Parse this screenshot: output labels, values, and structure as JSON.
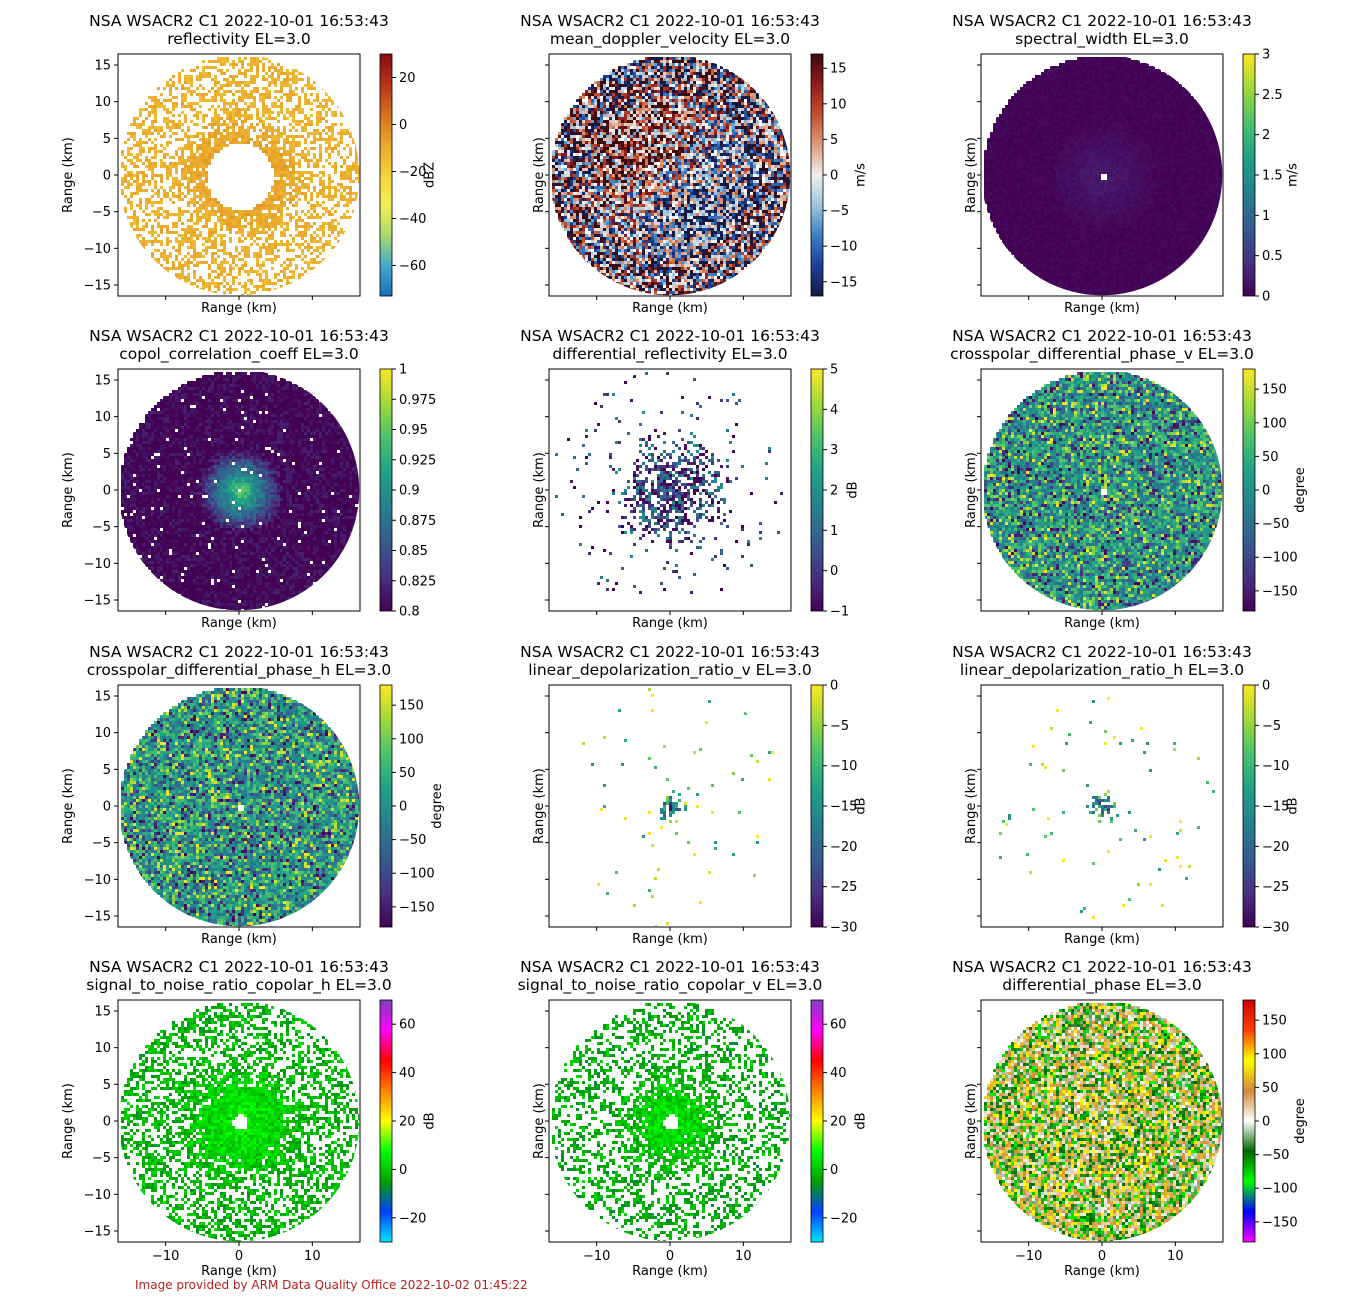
{
  "footer": {
    "credit": "Image provided by ARM Data Quality Office 2022-10-02 01:45:22"
  },
  "common": {
    "title_line1": "NSA WSACR2 C1 2022-10-01 16:53:43",
    "elevation": "EL=3.0",
    "xlabel": "Range (km)",
    "ylabel": "Range (km)",
    "xlim": [
      -16.5,
      16.5
    ],
    "ylim": [
      -16.5,
      16.5
    ],
    "xticks": [
      -10,
      0,
      10
    ],
    "yticks": [
      -15,
      -10,
      -5,
      0,
      5,
      10,
      15
    ]
  },
  "chart_data": [
    {
      "type": "heatmap",
      "field": "reflectivity",
      "units": "dBZ",
      "vmin": -73,
      "vmax": 30,
      "cbar_ticks": [
        -60,
        -40,
        -20,
        0,
        20
      ],
      "cmap": [
        "#1a6fb8",
        "#44aacc",
        "#a7d96a",
        "#f3ef55",
        "#f5d23a",
        "#e9a92c",
        "#d6701e",
        "#b8321b",
        "#8a0b12"
      ],
      "pattern": {
        "density": 0.5,
        "clear": 4.5,
        "core_radius": 9,
        "bg_value": 0.6,
        "core_value": 0.67,
        "spread": 0.04,
        "radial": false
      }
    },
    {
      "type": "heatmap",
      "field": "mean_doppler_velocity",
      "units": "m/s",
      "vmin": -17,
      "vmax": 17,
      "cbar_ticks": [
        -15,
        -10,
        -5,
        0,
        5,
        10,
        15
      ],
      "cmap": [
        "#141a45",
        "#1d3f99",
        "#3a7fbf",
        "#9ec6dd",
        "#efeeee",
        "#dc9c7c",
        "#c1502d",
        "#901c1c",
        "#3a0a0e"
      ],
      "pattern": {
        "density": 0.95,
        "clear": 0,
        "core_radius": 0,
        "bg_value": 0.5,
        "core_value": 0.5,
        "spread": 0.5,
        "radial": false
      }
    },
    {
      "type": "heatmap",
      "field": "spectral_width",
      "units": "m/s",
      "vmin": 0,
      "vmax": 3,
      "cbar_ticks": [
        0.0,
        0.5,
        1.0,
        1.5,
        2.0,
        2.5,
        3.0
      ],
      "cmap": [
        "#440154",
        "#46327e",
        "#365c8d",
        "#277f8e",
        "#1fa187",
        "#4ac16d",
        "#a0da39",
        "#fde725"
      ],
      "pattern": {
        "density": 1.0,
        "clear": 0.5,
        "core_radius": 8,
        "bg_value": 0.01,
        "core_value": 0.08,
        "spread": 0.02,
        "radial": false
      }
    },
    {
      "type": "heatmap",
      "field": "copol_correlation_coeff",
      "units": "",
      "vmin": 0.8,
      "vmax": 1.0,
      "cbar_ticks": [
        0.8,
        0.825,
        0.85,
        0.875,
        0.9,
        0.925,
        0.95,
        0.975,
        1.0
      ],
      "cmap": [
        "#440154",
        "#46327e",
        "#365c8d",
        "#277f8e",
        "#1fa187",
        "#4ac16d",
        "#a0da39",
        "#fde725"
      ],
      "pattern": {
        "density": 0.97,
        "clear": 0,
        "core_radius": 6,
        "bg_value": 0.0,
        "core_value": 0.75,
        "spread": 0.1,
        "radial": false
      }
    },
    {
      "type": "heatmap",
      "field": "differential_reflectivity",
      "units": "dB",
      "vmin": -1,
      "vmax": 5,
      "cbar_ticks": [
        -1,
        0,
        1,
        2,
        3,
        4,
        5
      ],
      "cmap": [
        "#440154",
        "#46327e",
        "#365c8d",
        "#277f8e",
        "#1fa187",
        "#4ac16d",
        "#a0da39",
        "#fde725"
      ],
      "pattern": {
        "density": 0.03,
        "clear": 0,
        "core_radius": 9,
        "bg_value": 0.2,
        "core_value": 0.22,
        "spread": 0.3,
        "radial": false
      }
    },
    {
      "type": "heatmap",
      "field": "crosspolar_differential_phase_v",
      "units": "degree",
      "vmin": -180,
      "vmax": 180,
      "cbar_ticks": [
        -150,
        -100,
        -50,
        0,
        50,
        100,
        150
      ],
      "cmap": [
        "#440154",
        "#46327e",
        "#365c8d",
        "#277f8e",
        "#1fa187",
        "#4ac16d",
        "#a0da39",
        "#fde725"
      ],
      "pattern": {
        "density": 1.0,
        "clear": 0.5,
        "core_radius": 4,
        "bg_value": 0.55,
        "core_value": 0.2,
        "spread": 0.5,
        "radial": true
      }
    },
    {
      "type": "heatmap",
      "field": "crosspolar_differential_phase_h",
      "units": "degree",
      "vmin": -180,
      "vmax": 180,
      "cbar_ticks": [
        -150,
        -100,
        -50,
        0,
        50,
        100,
        150
      ],
      "cmap": [
        "#440154",
        "#46327e",
        "#365c8d",
        "#277f8e",
        "#1fa187",
        "#4ac16d",
        "#a0da39",
        "#fde725"
      ],
      "pattern": {
        "density": 1.0,
        "clear": 0.5,
        "core_radius": 4,
        "bg_value": 0.55,
        "core_value": 0.15,
        "spread": 0.5,
        "radial": true
      }
    },
    {
      "type": "heatmap",
      "field": "linear_depolarization_ratio_v",
      "units": "dB",
      "vmin": -30,
      "vmax": 0,
      "cbar_ticks": [
        -30,
        -25,
        -20,
        -15,
        -10,
        -5,
        0
      ],
      "cmap": [
        "#440154",
        "#46327e",
        "#365c8d",
        "#277f8e",
        "#1fa187",
        "#4ac16d",
        "#a0da39",
        "#fde725"
      ],
      "pattern": {
        "density": 0.012,
        "clear": 0,
        "core_radius": 2.5,
        "bg_value": 0.8,
        "core_value": 0.25,
        "spread": 0.3,
        "radial": false
      }
    },
    {
      "type": "heatmap",
      "field": "linear_depolarization_ratio_h",
      "units": "dB",
      "vmin": -30,
      "vmax": 0,
      "cbar_ticks": [
        -30,
        -25,
        -20,
        -15,
        -10,
        -5,
        0
      ],
      "cmap": [
        "#440154",
        "#46327e",
        "#365c8d",
        "#277f8e",
        "#1fa187",
        "#4ac16d",
        "#a0da39",
        "#fde725"
      ],
      "pattern": {
        "density": 0.012,
        "clear": 0,
        "core_radius": 2.5,
        "bg_value": 0.8,
        "core_value": 0.25,
        "spread": 0.3,
        "radial": false
      }
    },
    {
      "type": "heatmap",
      "field": "signal_to_noise_ratio_copolar_h",
      "units": "dB",
      "vmin": -30,
      "vmax": 70,
      "cbar_ticks": [
        -20,
        0,
        20,
        40,
        60
      ],
      "cmap": [
        "#00e5ff",
        "#0040ff",
        "#00a000",
        "#00ff00",
        "#ffff00",
        "#ff8000",
        "#ff0000",
        "#ff00ff",
        "#8040c0"
      ],
      "pattern": {
        "density": 0.5,
        "clear": 1,
        "core_radius": 9,
        "bg_value": 0.28,
        "core_value": 0.36,
        "spread": 0.05,
        "radial": false
      }
    },
    {
      "type": "heatmap",
      "field": "signal_to_noise_ratio_copolar_v",
      "units": "dB",
      "vmin": -30,
      "vmax": 70,
      "cbar_ticks": [
        -20,
        0,
        20,
        40,
        60
      ],
      "cmap": [
        "#00e5ff",
        "#0040ff",
        "#00a000",
        "#00ff00",
        "#ffff00",
        "#ff8000",
        "#ff0000",
        "#ff00ff",
        "#8040c0"
      ],
      "pattern": {
        "density": 0.38,
        "clear": 1,
        "core_radius": 8,
        "bg_value": 0.27,
        "core_value": 0.35,
        "spread": 0.05,
        "radial": false
      }
    },
    {
      "type": "heatmap",
      "field": "differential_phase",
      "units": "degree",
      "vmin": -180,
      "vmax": 180,
      "cbar_ticks": [
        -150,
        -100,
        -50,
        0,
        50,
        100,
        150
      ],
      "cmap": [
        "#ff00ff",
        "#0000ff",
        "#00ff00",
        "#006600",
        "#ffffff",
        "#d28a3c",
        "#ffff00",
        "#ff4000",
        "#cc0000"
      ],
      "pattern": {
        "density": 1.0,
        "clear": 0.5,
        "core_radius": 9,
        "bg_value": 0.5,
        "core_value": 0.56,
        "spread": 0.25,
        "radial": false
      }
    }
  ]
}
